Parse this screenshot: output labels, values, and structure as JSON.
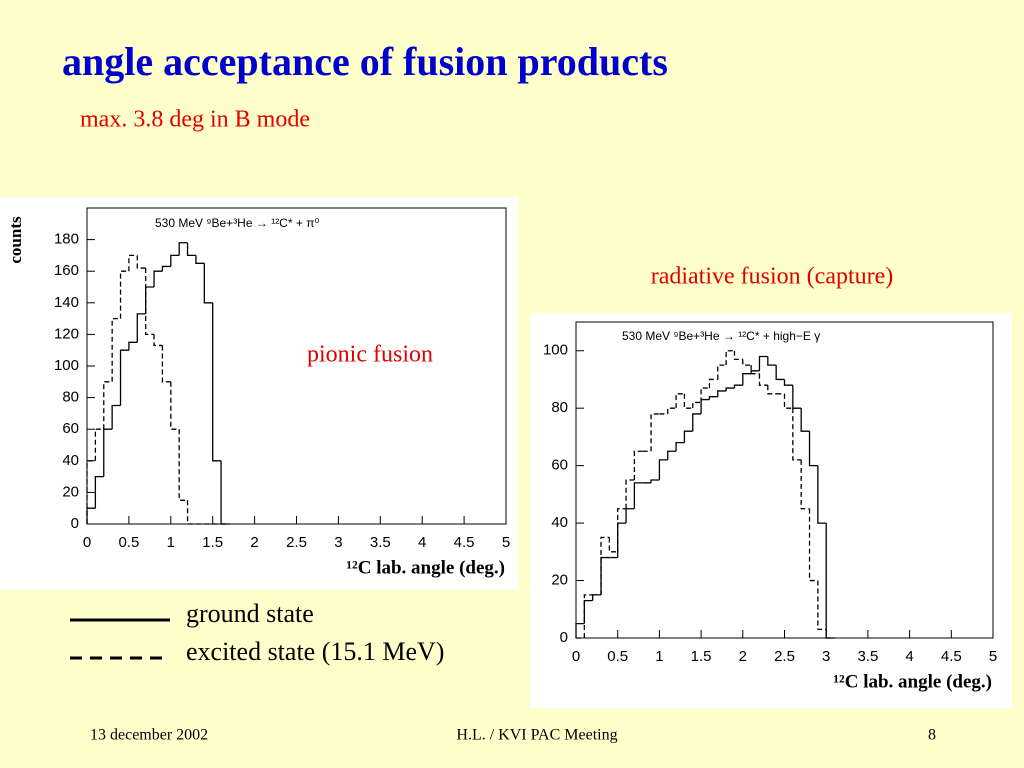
{
  "title": "angle acceptance of fusion products",
  "subtitle": "max. 3.8 deg in B mode",
  "chart_data": [
    {
      "type": "histogram",
      "title": "530 MeV ⁹Be+³He → ¹²C* + π⁰",
      "annotation": "pionic fusion",
      "xlabel": "¹²C lab. angle (deg.)",
      "ylabel": "counts",
      "bins": [
        0,
        0.1,
        0.2,
        0.3,
        0.4,
        0.5,
        0.6,
        0.7,
        0.8,
        0.9,
        1.0,
        1.1,
        1.2,
        1.3,
        1.4,
        1.5,
        1.6,
        1.7
      ],
      "series": [
        {
          "name": "ground state",
          "color": "#000000",
          "dashed": false,
          "counts": [
            10,
            30,
            60,
            75,
            110,
            115,
            133,
            150,
            160,
            163,
            170,
            178,
            170,
            165,
            140,
            40,
            0
          ]
        },
        {
          "name": "excited state (15.1 MeV)",
          "color": "#000000",
          "dashed": true,
          "counts": [
            40,
            60,
            90,
            130,
            160,
            170,
            162,
            120,
            113,
            90,
            60,
            15,
            0,
            0,
            0,
            0,
            0
          ]
        }
      ],
      "xlim": [
        0,
        5
      ],
      "ylim": [
        0,
        200
      ],
      "xticks": [
        0,
        0.5,
        1,
        1.5,
        2,
        2.5,
        3,
        3.5,
        4,
        4.5,
        5
      ],
      "yticks": [
        0,
        20,
        40,
        60,
        80,
        100,
        120,
        140,
        160,
        180
      ]
    },
    {
      "type": "histogram",
      "title": "530 MeV ⁹Be+³He → ¹²C* + high−E γ",
      "annotation": "radiative fusion (capture)",
      "xlabel": "¹²C lab. angle (deg.)",
      "bins": [
        0,
        0.1,
        0.2,
        0.3,
        0.4,
        0.5,
        0.6,
        0.7,
        0.8,
        0.9,
        1.0,
        1.1,
        1.2,
        1.3,
        1.4,
        1.5,
        1.6,
        1.7,
        1.8,
        1.9,
        2.0,
        2.1,
        2.2,
        2.3,
        2.4,
        2.5,
        2.6,
        2.7,
        2.8,
        2.9,
        3.0,
        3.1
      ],
      "series": [
        {
          "color": "#000000",
          "dashed": false,
          "counts": [
            5,
            13,
            15,
            28,
            28,
            40,
            45,
            54,
            54,
            55,
            62,
            65,
            68,
            72,
            78,
            83,
            84,
            86,
            87,
            88,
            92,
            93,
            98,
            95,
            90,
            88,
            80,
            72,
            60,
            40,
            0
          ]
        },
        {
          "color": "#000000",
          "dashed": true,
          "counts": [
            0,
            15,
            15,
            35,
            30,
            45,
            55,
            65,
            65,
            78,
            78,
            80,
            85,
            80,
            82,
            87,
            90,
            95,
            100,
            97,
            95,
            92,
            88,
            85,
            85,
            80,
            62,
            45,
            20,
            3,
            0
          ]
        }
      ],
      "xlim": [
        0,
        5
      ],
      "ylim": [
        0,
        110
      ],
      "xticks": [
        0,
        0.5,
        1,
        1.5,
        2,
        2.5,
        3,
        3.5,
        4,
        4.5,
        5
      ],
      "yticks": [
        0,
        20,
        40,
        60,
        80,
        100
      ]
    }
  ],
  "footer": {
    "date": "13 december 2002",
    "meeting": "H.L. / KVI PAC  Meeting",
    "page": "8"
  }
}
